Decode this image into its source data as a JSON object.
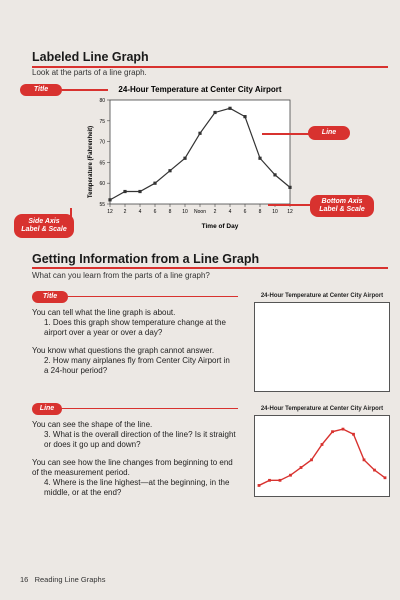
{
  "section1": {
    "title": "Labeled Line Graph",
    "intro": "Look at the parts of a line graph."
  },
  "callouts": {
    "title": "Title",
    "line": "Line",
    "bottom_axis": [
      "Bottom Axis",
      "Label & Scale"
    ],
    "side_axis": [
      "Side Axis",
      "Label & Scale"
    ]
  },
  "colors": {
    "accent": "#d8322f",
    "line": "#333333"
  },
  "chart_data": [
    {
      "type": "line",
      "title": "24-Hour Temperature at Center City Airport",
      "xlabel": "Time of Day",
      "ylabel": "Temperature (Fahrenheit)",
      "categories": [
        "12",
        "2",
        "4",
        "6",
        "8",
        "10",
        "Noon",
        "2",
        "4",
        "6",
        "8",
        "10",
        "12"
      ],
      "values": [
        56,
        58,
        58,
        60,
        63,
        66,
        72,
        77,
        78,
        76,
        66,
        62,
        59
      ],
      "ylim": [
        55,
        80
      ],
      "yticks": [
        "55",
        "60",
        "65",
        "70",
        "75",
        "80"
      ],
      "grid": false
    },
    {
      "type": "line",
      "title": "24-Hour Temperature at Center City Airport",
      "values": [],
      "grid": false
    },
    {
      "type": "line",
      "title": "24-Hour Temperature at Center City Airport",
      "values": [
        56,
        58,
        58,
        60,
        63,
        66,
        72,
        77,
        78,
        76,
        66,
        62,
        59
      ],
      "ylim": [
        55,
        80
      ],
      "grid": false
    }
  ],
  "section2": {
    "title": "Getting Information from a Line Graph",
    "intro": "What can you learn from the parts of a line graph?",
    "title_tag": "Title",
    "title_p1": "You can tell what the line graph is about.",
    "title_q1": "1. Does this graph show temperature change at the airport over a year or over a day?",
    "title_p2": "You know what questions the graph cannot answer.",
    "title_q2": "2. How many airplanes fly from Center City Airport in a 24-hour period?",
    "line_tag": "Line",
    "line_p1": "You can see the shape of the line.",
    "line_q3": "3. What is the overall direction of the line? Is it straight or does it go up and down?",
    "line_p2": "You can see how the line changes from beginning to end of the measurement period.",
    "line_q4": "4. Where is the line highest—at the beginning, in the middle, or at the end?"
  },
  "footer": "16   Reading Line Graphs"
}
